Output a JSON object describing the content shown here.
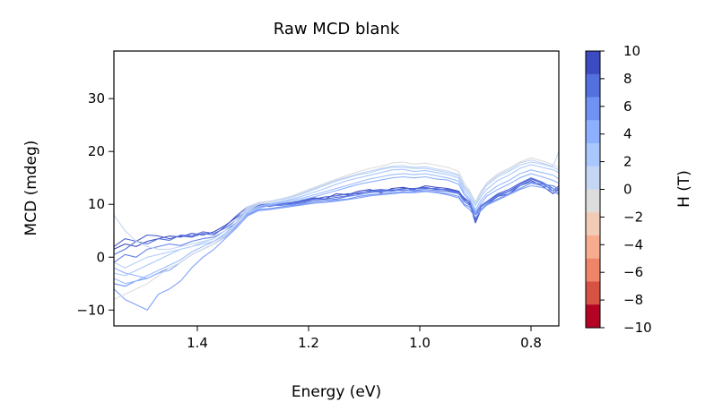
{
  "chart_data": {
    "type": "line",
    "title": "Raw MCD blank",
    "xlabel": "Energy (eV)",
    "ylabel": "MCD (mdeg)",
    "xlim": [
      1.55,
      0.75
    ],
    "ylim": [
      -13,
      39
    ],
    "x_inverted": true,
    "xticks": [
      1.4,
      1.2,
      1.0,
      0.8
    ],
    "xtick_labels": [
      "1.4",
      "1.2",
      "1.0",
      "0.8"
    ],
    "yticks": [
      -10,
      0,
      10,
      20,
      30
    ],
    "ytick_labels": [
      "−10",
      "0",
      "10",
      "20",
      "30"
    ],
    "grid": false,
    "colorbar": {
      "label": "H (T)",
      "ticks": [
        10,
        8,
        6,
        4,
        2,
        0,
        -2,
        -4,
        -6,
        -8,
        -10
      ],
      "tick_labels": [
        "10",
        "8",
        "6",
        "4",
        "2",
        "0",
        "−2",
        "−4",
        "−6",
        "−8",
        "−10"
      ],
      "colors": [
        "#3b4cc0",
        "#5470de",
        "#6f92f3",
        "#8db0fe",
        "#aac7fd",
        "#c5d6f2",
        "#dddddd",
        "#f2cbb7",
        "#f7ac8e",
        "#ee8468",
        "#d65244",
        "#b40426"
      ]
    },
    "x": [
      1.55,
      1.53,
      1.51,
      1.49,
      1.47,
      1.45,
      1.43,
      1.41,
      1.39,
      1.37,
      1.35,
      1.33,
      1.31,
      1.29,
      1.27,
      1.25,
      1.23,
      1.21,
      1.19,
      1.17,
      1.15,
      1.13,
      1.11,
      1.09,
      1.07,
      1.05,
      1.03,
      1.01,
      0.99,
      0.97,
      0.95,
      0.93,
      0.92,
      0.91,
      0.9,
      0.89,
      0.88,
      0.86,
      0.84,
      0.82,
      0.8,
      0.78,
      0.76,
      0.75
    ],
    "series": [
      {
        "field": 10,
        "color": "#3b4cc0",
        "values": [
          1.5,
          2.5,
          2.0,
          3.0,
          3.5,
          4.0,
          3.8,
          4.5,
          4.2,
          4.8,
          6.0,
          7.5,
          9.0,
          10.0,
          9.8,
          10.2,
          10.0,
          10.8,
          11.2,
          11.0,
          12.0,
          11.8,
          12.5,
          12.8,
          12.2,
          13.0,
          13.2,
          12.8,
          13.5,
          13.2,
          13.0,
          12.5,
          11.0,
          10.0,
          6.5,
          9.0,
          10.0,
          11.5,
          12.0,
          13.5,
          14.5,
          13.5,
          12.0,
          13.0
        ]
      },
      {
        "field": 9,
        "color": "#4a5fd2",
        "values": [
          2.0,
          3.5,
          3.0,
          4.2,
          4.0,
          3.5,
          4.0,
          3.8,
          4.5,
          4.2,
          5.8,
          7.8,
          9.5,
          10.2,
          10.0,
          10.0,
          10.4,
          10.6,
          11.0,
          11.4,
          11.6,
          12.0,
          12.0,
          12.6,
          12.8,
          12.6,
          13.0,
          13.0,
          13.2,
          12.8,
          12.8,
          12.3,
          11.2,
          10.5,
          7.0,
          9.5,
          10.3,
          11.8,
          12.5,
          13.8,
          14.8,
          14.0,
          12.5,
          13.5
        ]
      },
      {
        "field": 8,
        "color": "#5470de",
        "values": [
          0.5,
          1.5,
          3.0,
          2.5,
          3.5,
          3.2,
          4.2,
          4.0,
          4.8,
          4.5,
          5.5,
          7.0,
          8.8,
          9.8,
          9.6,
          10.0,
          10.2,
          10.4,
          10.9,
          11.0,
          11.3,
          11.6,
          12.2,
          12.4,
          12.6,
          12.8,
          12.6,
          12.9,
          13.0,
          13.0,
          12.6,
          12.2,
          10.8,
          10.2,
          8.0,
          9.8,
          10.5,
          12.0,
          12.8,
          14.0,
          15.0,
          14.2,
          13.0,
          12.5
        ]
      },
      {
        "field": 7,
        "color": "#6282ea",
        "values": [
          -1.0,
          0.5,
          0.0,
          1.5,
          2.0,
          2.5,
          2.2,
          3.0,
          3.5,
          3.8,
          5.0,
          6.5,
          8.5,
          9.5,
          9.8,
          9.8,
          10.0,
          10.2,
          10.6,
          10.8,
          11.0,
          11.5,
          11.8,
          12.2,
          12.4,
          12.5,
          12.8,
          12.6,
          12.8,
          12.6,
          12.4,
          12.0,
          10.5,
          9.8,
          8.5,
          9.6,
          10.3,
          11.6,
          12.4,
          13.5,
          14.2,
          13.8,
          13.5,
          12.8
        ]
      },
      {
        "field": 6,
        "color": "#6f92f3",
        "values": [
          -5.0,
          -5.5,
          -4.5,
          -4.0,
          -3.0,
          -2.0,
          -1.0,
          0.5,
          1.5,
          2.5,
          4.0,
          6.0,
          8.0,
          9.0,
          9.2,
          9.5,
          9.8,
          10.0,
          10.3,
          10.5,
          10.8,
          11.0,
          11.5,
          11.8,
          12.0,
          12.2,
          12.3,
          12.4,
          12.5,
          12.3,
          12.0,
          11.5,
          10.0,
          9.5,
          8.0,
          9.0,
          10.0,
          11.0,
          12.0,
          13.0,
          14.0,
          13.5,
          13.0,
          12.0
        ]
      },
      {
        "field": 5,
        "color": "#7ea0f9",
        "values": [
          -6.0,
          -8.0,
          -9.0,
          -10.0,
          -7.0,
          -6.0,
          -4.5,
          -2.0,
          0.0,
          1.5,
          3.5,
          5.5,
          7.8,
          8.8,
          9.0,
          9.3,
          9.6,
          9.9,
          10.2,
          10.4,
          10.6,
          10.9,
          11.2,
          11.6,
          11.8,
          12.0,
          12.2,
          12.2,
          12.4,
          12.2,
          11.8,
          11.2,
          9.8,
          9.0,
          7.5,
          8.8,
          9.8,
          10.8,
          11.8,
          12.8,
          13.5,
          13.2,
          12.5,
          11.8
        ]
      },
      {
        "field": 4,
        "color": "#8db0fe",
        "values": [
          -2.0,
          -3.0,
          -3.5,
          -4.0,
          -3.0,
          -2.5,
          -1.0,
          0.5,
          1.5,
          2.5,
          3.8,
          5.8,
          8.2,
          9.2,
          9.8,
          10.2,
          10.5,
          10.9,
          11.4,
          12.0,
          12.6,
          13.2,
          13.8,
          14.2,
          14.6,
          15.0,
          15.2,
          15.0,
          15.2,
          14.8,
          14.6,
          13.8,
          11.8,
          10.8,
          8.5,
          10.2,
          11.5,
          12.8,
          13.8,
          15.0,
          15.8,
          15.2,
          14.5,
          14.0
        ]
      },
      {
        "field": 3,
        "color": "#9bbcff",
        "values": [
          -4.0,
          -5.0,
          -4.5,
          -3.5,
          -2.5,
          -1.5,
          -0.5,
          1.0,
          2.0,
          3.0,
          4.2,
          6.2,
          8.5,
          9.6,
          10.0,
          10.4,
          10.8,
          11.2,
          11.8,
          12.4,
          13.0,
          13.6,
          14.2,
          14.8,
          15.2,
          15.6,
          15.8,
          15.6,
          15.8,
          15.4,
          15.0,
          14.4,
          12.2,
          11.0,
          9.0,
          10.8,
          12.0,
          13.5,
          14.5,
          15.8,
          16.5,
          16.0,
          15.5,
          14.8
        ]
      },
      {
        "field": 2,
        "color": "#aac7fd",
        "values": [
          -3.0,
          -3.5,
          -2.5,
          -1.5,
          -0.5,
          0.5,
          1.5,
          2.0,
          2.5,
          3.0,
          4.5,
          6.5,
          9.0,
          10.0,
          10.2,
          10.5,
          11.0,
          11.6,
          12.3,
          13.0,
          13.8,
          14.5,
          15.0,
          15.5,
          16.0,
          16.5,
          16.6,
          16.2,
          16.4,
          16.0,
          15.6,
          15.0,
          12.8,
          11.5,
          9.8,
          11.5,
          12.8,
          14.5,
          15.5,
          16.8,
          17.5,
          17.0,
          16.5,
          16.0
        ]
      },
      {
        "field": 1,
        "color": "#b8d0f9",
        "values": [
          -1.0,
          -2.0,
          -1.0,
          0.0,
          0.5,
          1.0,
          1.5,
          2.0,
          2.8,
          3.5,
          5.0,
          7.0,
          9.2,
          10.2,
          10.5,
          10.8,
          11.3,
          12.0,
          12.8,
          13.6,
          14.4,
          15.0,
          15.6,
          16.0,
          16.6,
          17.0,
          17.0,
          16.8,
          16.8,
          16.4,
          16.0,
          15.4,
          13.2,
          12.0,
          10.2,
          12.0,
          13.5,
          15.2,
          16.2,
          17.4,
          18.0,
          17.6,
          17.0,
          16.5
        ]
      },
      {
        "field": 0,
        "color": "#dddddd",
        "values": [
          -8.0,
          -7.0,
          -6.0,
          -5.0,
          -3.5,
          -2.0,
          -1.0,
          0.5,
          1.5,
          2.5,
          4.0,
          6.2,
          8.8,
          10.0,
          10.5,
          11.0,
          11.6,
          12.4,
          13.2,
          14.0,
          14.8,
          15.5,
          16.2,
          16.8,
          17.2,
          17.8,
          18.0,
          17.6,
          17.8,
          17.4,
          17.0,
          16.2,
          14.0,
          12.5,
          10.5,
          12.5,
          14.0,
          15.8,
          16.8,
          18.0,
          18.8,
          18.2,
          17.5,
          17.0
        ]
      },
      {
        "field": -1,
        "color": "#c5d6f2",
        "values": [
          8.0,
          5.0,
          3.0,
          2.0,
          1.5,
          1.5,
          2.0,
          2.5,
          3.0,
          3.5,
          5.0,
          7.0,
          9.5,
          10.3,
          10.6,
          11.0,
          11.5,
          12.2,
          13.0,
          13.8,
          14.6,
          15.2,
          15.8,
          16.3,
          16.8,
          17.2,
          17.3,
          17.0,
          17.1,
          16.7,
          16.3,
          15.6,
          13.5,
          12.2,
          10.2,
          12.2,
          13.8,
          15.5,
          16.5,
          17.8,
          18.4,
          17.8,
          17.2,
          20.0
        ]
      }
    ]
  }
}
